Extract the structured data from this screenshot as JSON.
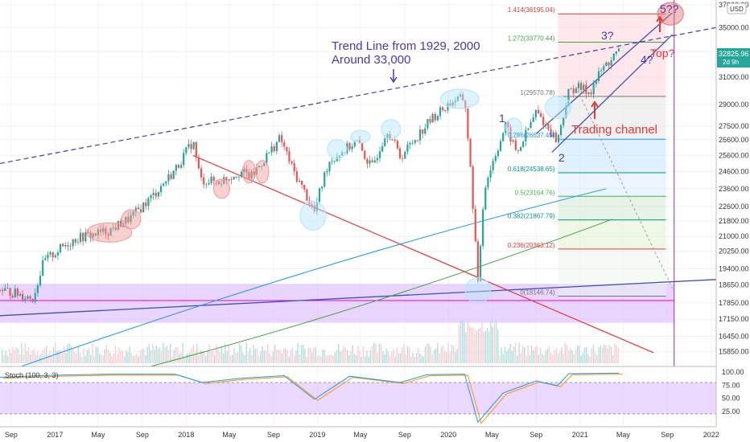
{
  "chart_data": {
    "type": "candlestick",
    "title": "",
    "y_scale": "log",
    "ylim": [
      15400,
      37000
    ],
    "x_range": [
      "2016-08-01",
      "2022-01-15"
    ],
    "y_ticks": [
      15850,
      16450,
      17150,
      17850,
      18650,
      19400,
      20250,
      21000,
      21800,
      22600,
      23600,
      24600,
      25600,
      26600,
      27500,
      29000,
      31000,
      33000,
      35000,
      37000
    ],
    "y_tick_labels": [
      "15850.00",
      "16450.00",
      "17150.00",
      "17850.00",
      "18650.00",
      "19400.00",
      "20250.00",
      "21000.00",
      "21800.00",
      "22600.00",
      "23600.00",
      "24600.00",
      "25600.00",
      "26600.00",
      "27500.00",
      "29000.00",
      "31000.00",
      "33000.00",
      "35000.00",
      "37000.00"
    ],
    "currency_label": "USD",
    "last_price": {
      "label": "32825.96",
      "value": 32825.96,
      "countdown": "2d 9h"
    },
    "x_ticks": [
      {
        "label": "Sep",
        "date": "2016-09-01"
      },
      {
        "label": "2017",
        "date": "2017-01-01"
      },
      {
        "label": "May",
        "date": "2017-05-01"
      },
      {
        "label": "Sep",
        "date": "2017-09-01"
      },
      {
        "label": "2018",
        "date": "2018-01-01"
      },
      {
        "label": "May",
        "date": "2018-05-01"
      },
      {
        "label": "Sep",
        "date": "2018-09-01"
      },
      {
        "label": "2019",
        "date": "2019-01-01"
      },
      {
        "label": "May",
        "date": "2019-05-01"
      },
      {
        "label": "Sep",
        "date": "2019-09-01"
      },
      {
        "label": "2020",
        "date": "2020-01-01"
      },
      {
        "label": "May",
        "date": "2020-05-01"
      },
      {
        "label": "Sep",
        "date": "2020-09-01"
      },
      {
        "label": "2021",
        "date": "2021-01-01"
      },
      {
        "label": "May",
        "date": "2021-05-01"
      },
      {
        "label": "Sep",
        "date": "2021-09-01"
      },
      {
        "label": "2022",
        "date": "2022-01-01"
      }
    ],
    "price_path": [
      [
        "2016-08-01",
        18450
      ],
      [
        "2016-10-01",
        18200
      ],
      [
        "2016-11-01",
        18050
      ],
      [
        "2016-12-01",
        19750
      ],
      [
        "2017-02-01",
        20600
      ],
      [
        "2017-03-01",
        20900
      ],
      [
        "2017-06-01",
        21300
      ],
      [
        "2017-08-01",
        22000
      ],
      [
        "2017-10-01",
        23200
      ],
      [
        "2017-12-01",
        24700
      ],
      [
        "2018-01-20",
        26500
      ],
      [
        "2018-02-10",
        24100
      ],
      [
        "2018-04-01",
        24000
      ],
      [
        "2018-06-01",
        24600
      ],
      [
        "2018-07-01",
        24300
      ],
      [
        "2018-09-20",
        26700
      ],
      [
        "2018-10-25",
        24700
      ],
      [
        "2018-12-24",
        22300
      ],
      [
        "2019-02-01",
        25200
      ],
      [
        "2019-04-20",
        26500
      ],
      [
        "2019-06-01",
        24800
      ],
      [
        "2019-07-15",
        27300
      ],
      [
        "2019-08-20",
        25500
      ],
      [
        "2019-11-15",
        28000
      ],
      [
        "2020-01-15",
        29300
      ],
      [
        "2020-02-15",
        29400
      ],
      [
        "2020-03-23",
        18600
      ],
      [
        "2020-04-10",
        23700
      ],
      [
        "2020-06-08",
        27500
      ],
      [
        "2020-07-10",
        25700
      ],
      [
        "2020-09-01",
        28500
      ],
      [
        "2020-10-30",
        26500
      ],
      [
        "2020-11-30",
        29800
      ],
      [
        "2020-12-20",
        30300
      ],
      [
        "2021-01-29",
        29900
      ],
      [
        "2021-03-01",
        31500
      ],
      [
        "2021-04-01",
        32500
      ],
      [
        "2021-04-20",
        33000
      ]
    ],
    "stochastic": {
      "label": "Stoch (100, 3, 3)",
      "ylim": [
        0,
        100
      ],
      "y_ticks": [
        25,
        50,
        75,
        100
      ],
      "y_tick_labels": [
        "25.00",
        "50.00",
        "75.00",
        "100.00"
      ],
      "path": [
        [
          "2016-08-01",
          90
        ],
        [
          "2017-01-01",
          94
        ],
        [
          "2017-06-01",
          96
        ],
        [
          "2017-12-01",
          96
        ],
        [
          "2018-02-15",
          80
        ],
        [
          "2018-06-01",
          88
        ],
        [
          "2018-10-01",
          93
        ],
        [
          "2018-12-24",
          48
        ],
        [
          "2019-04-01",
          92
        ],
        [
          "2019-08-20",
          80
        ],
        [
          "2019-11-01",
          95
        ],
        [
          "2020-02-15",
          96
        ],
        [
          "2020-03-23",
          4
        ],
        [
          "2020-06-01",
          60
        ],
        [
          "2020-09-01",
          83
        ],
        [
          "2020-10-30",
          74
        ],
        [
          "2020-12-01",
          97
        ],
        [
          "2021-04-20",
          98
        ]
      ]
    },
    "fibonacci": {
      "range_from": "2020-11-01",
      "range_to": "2021-08-28",
      "levels": [
        {
          "label": "1.414(36195.04)",
          "value": 36195.04
        },
        {
          "label": "1.272(33770.44)",
          "value": 33770.44
        },
        {
          "label": "1(29570.78)",
          "value": 29570.78
        },
        {
          "label": "0.786(26637.45)",
          "value": 26637.45
        },
        {
          "label": "0.618(24538.65)",
          "value": 24538.65
        },
        {
          "label": "0.5(23164.76)",
          "value": 23164.76
        },
        {
          "label": "0.382(21867.79)",
          "value": 21867.79
        },
        {
          "label": "0.236(20363.12)",
          "value": 20363.12
        },
        {
          "label": "0(18146.74)",
          "value": 18146.74
        }
      ]
    },
    "annotations": {
      "trend_line_title": "Trend Line from 1929, 2000",
      "trend_line_subtitle": "Around 33,000",
      "trading_channel": "Trading channel",
      "wave_1": "1",
      "wave_2": "2",
      "wave_3": "3?",
      "wave_4": "4?",
      "wave_5": "5??",
      "top": "Top?"
    }
  },
  "colors": {
    "candle_up": "#26a69a",
    "candle_down": "#ef5350",
    "trend_dashed": "#4a3aa8",
    "red_trend": "#e53935",
    "annotation_text": "#4a3aa8",
    "alert_text": "#e53935",
    "ma_blue": "#2196f3",
    "ma_green": "#43a047",
    "purple_zone": "#d9b3ff",
    "last_price_bg": "#26a69a"
  }
}
